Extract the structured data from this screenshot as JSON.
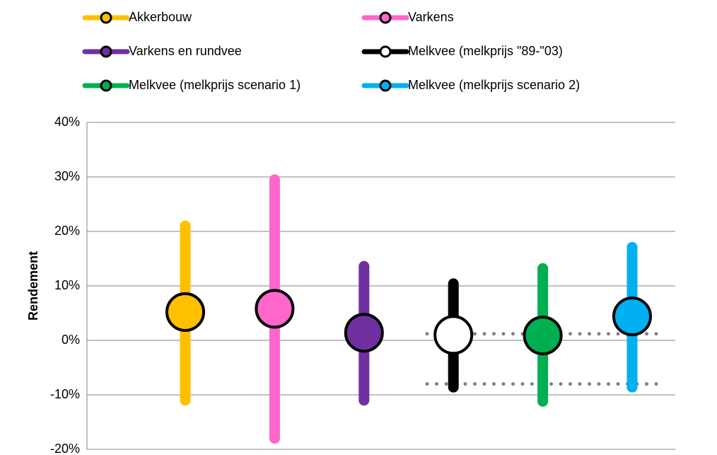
{
  "chart_data": {
    "type": "range",
    "y_label": "Rendement",
    "ylim": [
      -20,
      40
    ],
    "yticks": [
      {
        "value": -20,
        "label": "-20%"
      },
      {
        "value": -10,
        "label": "-10%"
      },
      {
        "value": 0,
        "label": "0%"
      },
      {
        "value": 10,
        "label": "10%"
      },
      {
        "value": 20,
        "label": "20%"
      },
      {
        "value": 30,
        "label": "30%"
      },
      {
        "value": 40,
        "label": "40%"
      }
    ],
    "grid": true,
    "series": [
      {
        "name": "Akkerbouw",
        "color": "#ffc000",
        "marker_fill": "#ffc000",
        "low": -11,
        "high": 21,
        "value": 5.2
      },
      {
        "name": "Varkens",
        "color": "#ff66cc",
        "marker_fill": "#ff66cc",
        "low": -18,
        "high": 29.5,
        "value": 5.8
      },
      {
        "name": "Varkens en rundvee",
        "color": "#7030a0",
        "marker_fill": "#7030a0",
        "low": -11,
        "high": 13.6,
        "value": 1.4
      },
      {
        "name": "Melkvee (melkprijs \"89-\"03)",
        "color": "#000000",
        "marker_fill": "#ffffff",
        "low": -8.6,
        "high": 10.4,
        "value": 1.0
      },
      {
        "name": "Melkvee (melkprijs scenario 1)",
        "color": "#00b050",
        "marker_fill": "#00b050",
        "low": -11.2,
        "high": 13.2,
        "value": 0.9
      },
      {
        "name": "Melkvee (melkprijs scenario 2)",
        "color": "#00b0f0",
        "marker_fill": "#00b0f0",
        "low": -8.6,
        "high": 17.1,
        "value": 4.4
      }
    ],
    "reference_lines": [
      1.2,
      -8
    ],
    "reference_color": "#808080"
  }
}
